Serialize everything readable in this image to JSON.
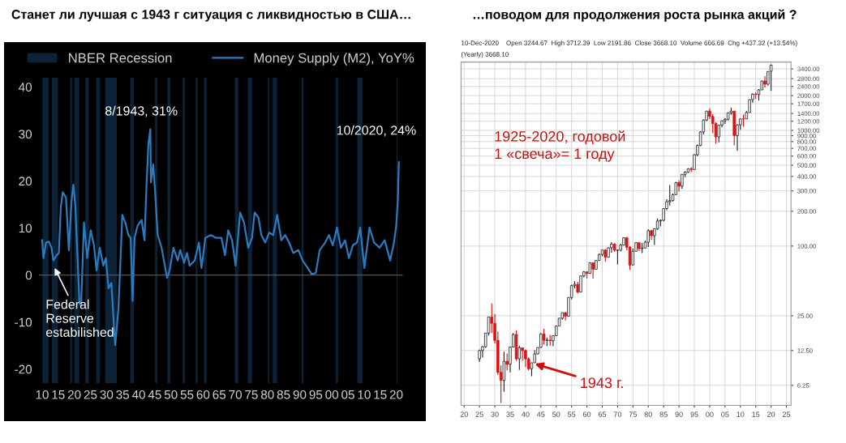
{
  "chart_data": [
    {
      "type": "line",
      "title": "Станет ли лучшая с 1943 г ситуация с ликвидностью в США…",
      "series": [
        {
          "name": "Money Supply (M2), YoY%",
          "color": "#2b7bc0",
          "x": [
            1910.0,
            1910.4,
            1911.2,
            1912.1,
            1912.9,
            1913.5,
            1914.5,
            1915.2,
            1915.8,
            1916.4,
            1917.4,
            1918.3,
            1919.1,
            1919.7,
            1920.3,
            1921.6,
            1922.1,
            1923.0,
            1924.0,
            1925.1,
            1926.1,
            1926.9,
            1927.9,
            1929.0,
            1929.8,
            1930.6,
            1931.5,
            1932.3,
            1932.7,
            1933.7,
            1934.3,
            1934.9,
            1935.8,
            1936.8,
            1937.5,
            1938.1,
            1938.7,
            1939.7,
            1940.9,
            1941.8,
            1942.4,
            1943.0,
            1943.6,
            1943.8,
            1944.5,
            1945.1,
            1945.9,
            1947.1,
            1948.8,
            1949.6,
            1950.8,
            1952.1,
            1952.9,
            1954.1,
            1955.0,
            1955.8,
            1957.4,
            1958.7,
            1959.5,
            1960.7,
            1962.4,
            1964.0,
            1965.7,
            1966.8,
            1967.8,
            1969.0,
            1970.1,
            1971.5,
            1972.7,
            1974.0,
            1975.2,
            1976.0,
            1977.2,
            1978.1,
            1979.3,
            1980.5,
            1981.8,
            1983.0,
            1984.3,
            1985.5,
            1986.7,
            1988.0,
            1989.6,
            1990.9,
            1992.5,
            1993.7,
            1995.0,
            1996.2,
            1997.9,
            1999.1,
            2000.3,
            2001.6,
            2002.8,
            2004.1,
            2005.3,
            2006.5,
            2007.8,
            2008.8,
            2010.1,
            2011.7,
            2013.1,
            2014.8,
            2016.4,
            2018.1,
            2019.3,
            2020.0,
            2020.5,
            2020.8
          ],
          "values": [
            7.4,
            3.6,
            6.9,
            7.1,
            5.8,
            3.1,
            4.2,
            4.7,
            14.4,
            17.6,
            16.5,
            5.3,
            15.5,
            19.2,
            14.9,
            -6.0,
            -6.5,
            11.2,
            3.6,
            9.5,
            6.3,
            1.0,
            5.8,
            2.0,
            3.6,
            -2.8,
            -1.7,
            -10.8,
            -14.9,
            -7.1,
            2.6,
            12.8,
            11.2,
            8.5,
            7.9,
            -5.5,
            7.9,
            10.6,
            11.7,
            7.4,
            18.7,
            27.8,
            31,
            19.7,
            23.5,
            17.6,
            8.5,
            5.8,
            -0.6,
            1.0,
            5.8,
            3.1,
            5.3,
            2.6,
            4.7,
            2.0,
            3.1,
            6.9,
            1.5,
            7.9,
            8.5,
            7.9,
            7.9,
            4.2,
            9.5,
            7.4,
            2.0,
            13.3,
            11.2,
            5.8,
            7.9,
            13.3,
            12.2,
            8.5,
            6.9,
            9.0,
            8.5,
            12.8,
            7.4,
            8.5,
            6.9,
            4.7,
            5.3,
            3.1,
            1.5,
            0.2,
            0.4,
            5.3,
            6.9,
            8.5,
            6.3,
            10.1,
            5.8,
            7.4,
            3.6,
            6.3,
            6.9,
            10.1,
            1.5,
            10.1,
            6.9,
            5.8,
            7.4,
            3.1,
            6.9,
            10.6,
            16,
            24
          ]
        }
      ],
      "bands": [
        {
          "axis": "x",
          "from": 1910.1,
          "to": 1912.0,
          "label": "NBER Recession",
          "color": "#0c2236"
        },
        {
          "axis": "x",
          "from": 1913.0,
          "to": 1914.9,
          "color": "#0c2236"
        },
        {
          "axis": "x",
          "from": 1918.7,
          "to": 1919.3,
          "color": "#0c2236"
        },
        {
          "axis": "x",
          "from": 1920.0,
          "to": 1921.5,
          "color": "#0c2236"
        },
        {
          "axis": "x",
          "from": 1923.4,
          "to": 1924.5,
          "color": "#0c2236"
        },
        {
          "axis": "x",
          "from": 1926.8,
          "to": 1927.9,
          "color": "#0c2236"
        },
        {
          "axis": "x",
          "from": 1929.6,
          "to": 1933.2,
          "color": "#0c2236"
        },
        {
          "axis": "x",
          "from": 1937.4,
          "to": 1938.5,
          "color": "#0c2236"
        },
        {
          "axis": "x",
          "from": 1945.1,
          "to": 1945.8,
          "color": "#0c2236"
        },
        {
          "axis": "x",
          "from": 1948.9,
          "to": 1949.8,
          "color": "#0c2236"
        },
        {
          "axis": "x",
          "from": 1953.6,
          "to": 1954.4,
          "color": "#0c2236"
        },
        {
          "axis": "x",
          "from": 1957.7,
          "to": 1958.3,
          "color": "#0c2236"
        },
        {
          "axis": "x",
          "from": 1960.3,
          "to": 1961.1,
          "color": "#0c2236"
        },
        {
          "axis": "x",
          "from": 1969.9,
          "to": 1970.9,
          "color": "#0c2236"
        },
        {
          "axis": "x",
          "from": 1973.9,
          "to": 1975.2,
          "color": "#0c2236"
        },
        {
          "axis": "x",
          "from": 1980.1,
          "to": 1980.6,
          "color": "#0c2236"
        },
        {
          "axis": "x",
          "from": 1981.6,
          "to": 1982.9,
          "color": "#0c2236"
        },
        {
          "axis": "x",
          "from": 1990.6,
          "to": 1991.2,
          "color": "#0c2236"
        },
        {
          "axis": "x",
          "from": 2001.2,
          "to": 2001.9,
          "color": "#0c2236"
        },
        {
          "axis": "x",
          "from": 2007.9,
          "to": 2009.5,
          "color": "#0c2236"
        },
        {
          "axis": "x",
          "from": 2020.1,
          "to": 2020.4,
          "color": "#0c2236"
        }
      ],
      "ref_lines": [
        {
          "axis": "y",
          "value": 0,
          "color": "#555555"
        }
      ],
      "annotations": [
        {
          "text": "8/1943, 31%",
          "x": 1943.6,
          "y": 31
        },
        {
          "text": "10/2020, 24%",
          "x": 2020.8,
          "y": 24
        },
        {
          "text": "Federal\nReserve\nestabilished",
          "x": 1913.9,
          "y": 1.5
        }
      ],
      "xlim": [
        1909,
        2022
      ],
      "xticks": [
        {
          "value": 1910,
          "label": "10"
        },
        {
          "value": 1915,
          "label": "15"
        },
        {
          "value": 1920,
          "label": "20"
        },
        {
          "value": 1925,
          "label": "25"
        },
        {
          "value": 1930,
          "label": "30"
        },
        {
          "value": 1935,
          "label": "35"
        },
        {
          "value": 1940,
          "label": "40"
        },
        {
          "value": 1945,
          "label": "45"
        },
        {
          "value": 1950,
          "label": "50"
        },
        {
          "value": 1955,
          "label": "55"
        },
        {
          "value": 1960,
          "label": "60"
        },
        {
          "value": 1965,
          "label": "65"
        },
        {
          "value": 1970,
          "label": "70"
        },
        {
          "value": 1975,
          "label": "75"
        },
        {
          "value": 1980,
          "label": "80"
        },
        {
          "value": 1985,
          "label": "85"
        },
        {
          "value": 1990,
          "label": "90"
        },
        {
          "value": 1995,
          "label": "95"
        },
        {
          "value": 2000,
          "label": "00"
        },
        {
          "value": 2005,
          "label": "05"
        },
        {
          "value": 2010,
          "label": "10"
        },
        {
          "value": 2015,
          "label": "15"
        },
        {
          "value": 2020,
          "label": "20"
        }
      ],
      "ylim": [
        -23,
        42
      ],
      "yticks": [
        -20,
        -10,
        0,
        10,
        20,
        30,
        40
      ],
      "grid": false,
      "legend": "top",
      "marker": "none",
      "line_style": "solid"
    },
    {
      "type": "candlestick",
      "title": "…поводом для продолжения роста рынка акций ?",
      "x": [
        1925,
        1926,
        1927,
        1928,
        1929,
        1930,
        1931,
        1932,
        1933,
        1934,
        1935,
        1936,
        1937,
        1938,
        1939,
        1940,
        1941,
        1942,
        1943,
        1944,
        1945,
        1946,
        1947,
        1948,
        1949,
        1950,
        1951,
        1952,
        1953,
        1954,
        1955,
        1956,
        1957,
        1958,
        1959,
        1960,
        1961,
        1962,
        1963,
        1964,
        1965,
        1966,
        1967,
        1968,
        1969,
        1970,
        1971,
        1972,
        1973,
        1974,
        1975,
        1976,
        1977,
        1978,
        1979,
        1980,
        1981,
        1982,
        1983,
        1984,
        1985,
        1986,
        1987,
        1988,
        1989,
        1990,
        1991,
        1992,
        1993,
        1994,
        1995,
        1996,
        1997,
        1998,
        1999,
        2000,
        2001,
        2002,
        2003,
        2004,
        2005,
        2006,
        2007,
        2008,
        2009,
        2010,
        2011,
        2012,
        2013,
        2014,
        2015,
        2016,
        2017,
        2018,
        2019,
        2020
      ],
      "ohlc": [
        [
          10.6,
          12.7,
          10.0,
          12.5
        ],
        [
          12.5,
          13.7,
          10.9,
          13.5
        ],
        [
          13.5,
          17.7,
          13.2,
          17.7
        ],
        [
          17.7,
          24.4,
          16.9,
          24.4
        ],
        [
          24.4,
          31.9,
          17.7,
          21.5
        ],
        [
          21.5,
          25.9,
          14.4,
          15.3
        ],
        [
          15.3,
          18.2,
          7.7,
          8.1
        ],
        [
          8.1,
          9.3,
          4.4,
          6.9
        ],
        [
          6.9,
          12.2,
          5.5,
          10.1
        ],
        [
          10.1,
          11.8,
          8.4,
          9.5
        ],
        [
          9.5,
          13.5,
          8.1,
          13.4
        ],
        [
          13.4,
          17.7,
          13.4,
          17.2
        ],
        [
          17.2,
          18.7,
          10.2,
          10.6
        ],
        [
          10.6,
          13.8,
          8.5,
          13.2
        ],
        [
          13.2,
          13.2,
          10.2,
          12.5
        ],
        [
          12.5,
          12.8,
          9.0,
          10.6
        ],
        [
          10.6,
          10.9,
          8.4,
          8.7
        ],
        [
          8.7,
          9.8,
          7.5,
          9.8
        ],
        [
          9.8,
          12.6,
          9.8,
          11.7
        ],
        [
          11.7,
          13.3,
          11.6,
          13.3
        ],
        [
          13.3,
          17.7,
          13.2,
          17.4
        ],
        [
          17.4,
          19.3,
          14.1,
          15.3
        ],
        [
          15.3,
          16.2,
          13.7,
          15.4
        ],
        [
          15.4,
          17.1,
          13.8,
          15.2
        ],
        [
          15.2,
          16.8,
          13.6,
          16.8
        ],
        [
          16.8,
          20.4,
          16.7,
          20.4
        ],
        [
          20.4,
          23.9,
          20.4,
          23.8
        ],
        [
          23.8,
          26.6,
          23.1,
          26.6
        ],
        [
          26.6,
          26.7,
          22.7,
          24.8
        ],
        [
          24.8,
          36.0,
          24.8,
          36.0
        ],
        [
          36.0,
          46.4,
          34.6,
          45.5
        ],
        [
          45.5,
          49.7,
          43.1,
          46.7
        ],
        [
          46.7,
          49.1,
          39.0,
          40.0
        ],
        [
          40.0,
          55.2,
          40.0,
          55.2
        ],
        [
          55.2,
          60.7,
          53.6,
          59.9
        ],
        [
          59.9,
          60.4,
          52.3,
          58.1
        ],
        [
          58.1,
          72.6,
          57.6,
          71.6
        ],
        [
          71.6,
          72.0,
          52.3,
          63.1
        ],
        [
          63.1,
          75.0,
          62.7,
          75.0
        ],
        [
          75.0,
          86.3,
          75.0,
          84.8
        ],
        [
          84.8,
          92.6,
          81.6,
          92.4
        ],
        [
          92.4,
          94.1,
          73.2,
          80.3
        ],
        [
          80.3,
          97.6,
          80.3,
          96.5
        ],
        [
          96.5,
          108,
          87.7,
          104
        ],
        [
          104,
          106,
          89.2,
          92.1
        ],
        [
          92.1,
          93.5,
          69.3,
          92.2
        ],
        [
          92.2,
          105,
          90.2,
          102
        ],
        [
          102,
          119,
          102,
          118
        ],
        [
          118,
          120,
          92.2,
          97.6
        ],
        [
          97.6,
          99.8,
          62.3,
          68.6
        ],
        [
          68.6,
          95.6,
          68.6,
          90.2
        ],
        [
          90.2,
          108,
          90.2,
          107
        ],
        [
          107,
          107,
          90.7,
          95.1
        ],
        [
          95.1,
          107,
          86.9,
          96.1
        ],
        [
          96.1,
          111,
          96.1,
          108
        ],
        [
          108,
          140,
          98.2,
          136
        ],
        [
          136,
          138,
          113,
          123
        ],
        [
          123,
          143,
          102,
          141
        ],
        [
          141,
          173,
          138,
          165
        ],
        [
          165,
          170,
          148,
          167
        ],
        [
          167,
          212,
          164,
          211
        ],
        [
          211,
          254,
          204,
          242
        ],
        [
          242,
          337,
          224,
          247
        ],
        [
          247,
          284,
          243,
          278
        ],
        [
          278,
          360,
          275,
          353
        ],
        [
          353,
          370,
          296,
          330
        ],
        [
          330,
          418,
          312,
          417
        ],
        [
          417,
          443,
          395,
          436
        ],
        [
          436,
          471,
          429,
          466
        ],
        [
          466,
          483,
          436,
          459
        ],
        [
          459,
          623,
          459,
          616
        ],
        [
          616,
          757,
          597,
          741
        ],
        [
          741,
          984,
          730,
          970
        ],
        [
          970,
          1242,
          923,
          1229
        ],
        [
          1229,
          1473,
          1206,
          1469
        ],
        [
          1469,
          1553,
          1254,
          1320
        ],
        [
          1320,
          1383,
          945,
          1148
        ],
        [
          1148,
          1177,
          769,
          880
        ],
        [
          880,
          1113,
          789,
          1112
        ],
        [
          1112,
          1218,
          1061,
          1212
        ],
        [
          1212,
          1276,
          1136,
          1248
        ],
        [
          1248,
          1432,
          1219,
          1418
        ],
        [
          1418,
          1576,
          1364,
          1468
        ],
        [
          1468,
          1472,
          741,
          903
        ],
        [
          903,
          1130,
          667,
          1115
        ],
        [
          1115,
          1263,
          1011,
          1258
        ],
        [
          1258,
          1371,
          1075,
          1257
        ],
        [
          1257,
          1475,
          1257,
          1426
        ],
        [
          1426,
          1849,
          1426,
          1848
        ],
        [
          1848,
          2094,
          1738,
          2059
        ],
        [
          2059,
          2135,
          1867,
          2044
        ],
        [
          2044,
          2278,
          1810,
          2239
        ],
        [
          2239,
          2695,
          2239,
          2674
        ],
        [
          2674,
          2941,
          2347,
          2507
        ],
        [
          2507,
          3248,
          2444,
          3231
        ],
        [
          3244.67,
          3712.39,
          2191.86,
          3668.1
        ]
      ],
      "colors": [
        "#ffffff",
        "#ffffff",
        "#ffffff",
        "#ffffff",
        "#dd1111",
        "#dd1111",
        "#dd1111",
        "#dd1111",
        "#ffffff",
        "#dd1111",
        "#ffffff",
        "#ffffff",
        "#dd1111",
        "#ffffff",
        "#dd1111",
        "#dd1111",
        "#dd1111",
        "#ffffff",
        "#ffffff",
        "#ffffff",
        "#ffffff",
        "#dd1111",
        "#ffffff",
        "#dd1111",
        "#ffffff",
        "#ffffff",
        "#ffffff",
        "#ffffff",
        "#dd1111",
        "#ffffff",
        "#ffffff",
        "#ffffff",
        "#dd1111",
        "#ffffff",
        "#ffffff",
        "#dd1111",
        "#ffffff",
        "#dd1111",
        "#ffffff",
        "#ffffff",
        "#ffffff",
        "#dd1111",
        "#ffffff",
        "#ffffff",
        "#dd1111",
        "#ffffff",
        "#ffffff",
        "#ffffff",
        "#dd1111",
        "#dd1111",
        "#ffffff",
        "#ffffff",
        "#dd1111",
        "#ffffff",
        "#ffffff",
        "#ffffff",
        "#dd1111",
        "#ffffff",
        "#ffffff",
        "#ffffff",
        "#ffffff",
        "#ffffff",
        "#ffffff",
        "#ffffff",
        "#ffffff",
        "#dd1111",
        "#ffffff",
        "#ffffff",
        "#ffffff",
        "#dd1111",
        "#ffffff",
        "#ffffff",
        "#ffffff",
        "#ffffff",
        "#ffffff",
        "#dd1111",
        "#dd1111",
        "#dd1111",
        "#ffffff",
        "#ffffff",
        "#ffffff",
        "#ffffff",
        "#ffffff",
        "#dd1111",
        "#ffffff",
        "#ffffff",
        "#dd1111",
        "#ffffff",
        "#ffffff",
        "#ffffff",
        "#dd1111",
        "#ffffff",
        "#ffffff",
        "#dd1111",
        "#ffffff",
        "#ffffff"
      ],
      "annotations": [
        "1925-2020, годовой\n1 «свеча»= 1 году",
        "10-Dec-2020    Open 3244.67  High 3712.39  Low 2191.86  Close 3668.10  Volume 666.69  Chg +437.32 (+13.54%)",
        "(Yearly) 3668.10",
        {
          "text": "1943 г.",
          "x": 1943,
          "y": 9.6
        }
      ],
      "log": "y",
      "xlim": [
        1919,
        2026.5
      ],
      "xticks": [
        {
          "value": 1920,
          "label": "20"
        },
        {
          "value": 1925,
          "label": "25"
        },
        {
          "value": 1930,
          "label": "30"
        },
        {
          "value": 1935,
          "label": "35"
        },
        {
          "value": 1940,
          "label": "40"
        },
        {
          "value": 1945,
          "label": "45"
        },
        {
          "value": 1950,
          "label": "50"
        },
        {
          "value": 1955,
          "label": "55"
        },
        {
          "value": 1960,
          "label": "60"
        },
        {
          "value": 1965,
          "label": "65"
        },
        {
          "value": 1970,
          "label": "70"
        },
        {
          "value": 1975,
          "label": "75"
        },
        {
          "value": 1980,
          "label": "80"
        },
        {
          "value": 1985,
          "label": "85"
        },
        {
          "value": 1990,
          "label": "90"
        },
        {
          "value": 1995,
          "label": "95"
        },
        {
          "value": 2000,
          "label": "00"
        },
        {
          "value": 2005,
          "label": "05"
        },
        {
          "value": 2010,
          "label": "10"
        },
        {
          "value": 2015,
          "label": "15"
        },
        {
          "value": 2020,
          "label": "20"
        },
        {
          "value": 2025,
          "label": "25"
        }
      ],
      "ylim": [
        4.2,
        3900
      ],
      "yticks": [
        {
          "value": 6.25,
          "label": "6.25"
        },
        {
          "value": 12.5,
          "label": "12.50"
        },
        {
          "value": 25,
          "label": "25.00"
        },
        {
          "value": 100,
          "label": "100.00"
        },
        {
          "value": 200,
          "label": "200.00"
        },
        {
          "value": 300,
          "label": "300.00"
        },
        {
          "value": 400,
          "label": "400.00"
        },
        {
          "value": 500,
          "label": "500.00"
        },
        {
          "value": 600,
          "label": "600.00"
        },
        {
          "value": 700,
          "label": "700.00"
        },
        {
          "value": 800,
          "label": "800.00"
        },
        {
          "value": 900,
          "label": "900.00"
        },
        {
          "value": 1000,
          "label": "1000.00"
        },
        {
          "value": 1200,
          "label": "1200.00"
        },
        {
          "value": 1400,
          "label": "1400.00"
        },
        {
          "value": 1700,
          "label": "1700.00"
        },
        {
          "value": 2000,
          "label": "2000.00"
        },
        {
          "value": 2400,
          "label": "2400.00"
        },
        {
          "value": 2800,
          "label": "2800.00"
        },
        {
          "value": 3400,
          "label": "3400.00"
        }
      ],
      "grid": true
    }
  ]
}
